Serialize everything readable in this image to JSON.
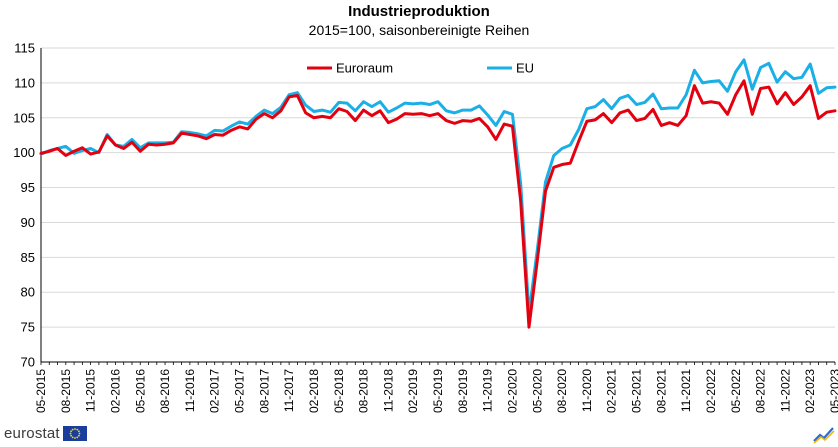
{
  "chart_data": {
    "type": "line",
    "title": "Industrieproduktion",
    "subtitle": "2015=100, saisonbereinigte Reihen",
    "xlabel": "",
    "ylabel": "",
    "ylim": [
      70,
      115
    ],
    "yticks": [
      70,
      75,
      80,
      85,
      90,
      95,
      100,
      105,
      110,
      115
    ],
    "xtick_labels": [
      "05-2015",
      "08-2015",
      "11-2015",
      "02-2016",
      "05-2016",
      "08-2016",
      "11-2016",
      "02-2017",
      "05-2017",
      "08-2017",
      "11-2017",
      "02-2018",
      "05-2018",
      "08-2018",
      "11-2018",
      "02-2019",
      "05-2019",
      "08-2019",
      "11-2019",
      "02-2020",
      "05-2020",
      "08-2020",
      "11-2020",
      "02-2021",
      "05-2021",
      "08-2021",
      "11-2021",
      "02-2022",
      "05-2022",
      "08-2022",
      "11-2022",
      "02-2023",
      "05-2023"
    ],
    "grid": "horizontal",
    "legend_position": "top-center",
    "x": [
      "05-2015",
      "06-2015",
      "07-2015",
      "08-2015",
      "09-2015",
      "10-2015",
      "11-2015",
      "12-2015",
      "01-2016",
      "02-2016",
      "03-2016",
      "04-2016",
      "05-2016",
      "06-2016",
      "07-2016",
      "08-2016",
      "09-2016",
      "10-2016",
      "11-2016",
      "12-2016",
      "01-2017",
      "02-2017",
      "03-2017",
      "04-2017",
      "05-2017",
      "06-2017",
      "07-2017",
      "08-2017",
      "09-2017",
      "10-2017",
      "11-2017",
      "12-2017",
      "01-2018",
      "02-2018",
      "03-2018",
      "04-2018",
      "05-2018",
      "06-2018",
      "07-2018",
      "08-2018",
      "09-2018",
      "10-2018",
      "11-2018",
      "12-2018",
      "01-2019",
      "02-2019",
      "03-2019",
      "04-2019",
      "05-2019",
      "06-2019",
      "07-2019",
      "08-2019",
      "09-2019",
      "10-2019",
      "11-2019",
      "12-2019",
      "01-2020",
      "02-2020",
      "03-2020",
      "04-2020",
      "05-2020",
      "06-2020",
      "07-2020",
      "08-2020",
      "09-2020",
      "10-2020",
      "11-2020",
      "12-2020",
      "01-2021",
      "02-2021",
      "03-2021",
      "04-2021",
      "05-2021",
      "06-2021",
      "07-2021",
      "08-2021",
      "09-2021",
      "10-2021",
      "11-2021",
      "12-2021",
      "01-2022",
      "02-2022",
      "03-2022",
      "04-2022",
      "05-2022",
      "06-2022",
      "07-2022",
      "08-2022",
      "09-2022",
      "10-2022",
      "11-2022",
      "12-2022",
      "01-2023",
      "02-2023",
      "03-2023",
      "04-2023",
      "05-2023"
    ],
    "series": [
      {
        "name": "Euroraum",
        "color": "#e3000f",
        "values": [
          99.9,
          100.2,
          100.6,
          99.6,
          100.2,
          100.7,
          99.8,
          100.1,
          102.4,
          101.1,
          100.6,
          101.5,
          100.2,
          101.2,
          101.1,
          101.2,
          101.4,
          102.8,
          102.6,
          102.4,
          102.0,
          102.6,
          102.5,
          103.2,
          103.7,
          103.4,
          104.8,
          105.6,
          105.0,
          106.0,
          108.0,
          108.2,
          105.7,
          105.0,
          105.2,
          105.0,
          106.3,
          105.9,
          104.6,
          106.1,
          105.3,
          106.0,
          104.3,
          104.8,
          105.6,
          105.5,
          105.6,
          105.3,
          105.6,
          104.6,
          104.2,
          104.6,
          104.5,
          104.9,
          103.7,
          101.9,
          104.1,
          103.8,
          93.0,
          75.0,
          84.5,
          94.5,
          97.9,
          98.3,
          98.5,
          101.6,
          104.5,
          104.7,
          105.6,
          104.3,
          105.7,
          106.1,
          104.6,
          104.9,
          106.2,
          103.9,
          104.3,
          103.9,
          105.3,
          109.6,
          107.1,
          107.3,
          107.1,
          105.5,
          108.3,
          110.3,
          105.5,
          109.2,
          109.4,
          107.0,
          108.6,
          106.9,
          108.0,
          109.6,
          104.9,
          105.8,
          106.0
        ]
      },
      {
        "name": "EU",
        "color": "#1ab0e6",
        "values": [
          99.8,
          100.3,
          100.6,
          100.9,
          99.9,
          100.3,
          100.6,
          100.0,
          102.6,
          101.1,
          100.9,
          101.9,
          100.7,
          101.4,
          101.4,
          101.4,
          101.5,
          103.0,
          102.9,
          102.7,
          102.4,
          103.2,
          103.1,
          103.8,
          104.4,
          104.1,
          105.2,
          106.1,
          105.6,
          106.5,
          108.3,
          108.6,
          106.8,
          105.9,
          106.1,
          105.8,
          107.2,
          107.1,
          106.0,
          107.3,
          106.6,
          107.3,
          105.8,
          106.4,
          107.1,
          107.0,
          107.1,
          106.9,
          107.3,
          106.0,
          105.7,
          106.1,
          106.1,
          106.7,
          105.4,
          103.9,
          105.9,
          105.5,
          95.5,
          77.0,
          86.0,
          95.8,
          99.6,
          100.6,
          101.1,
          103.3,
          106.3,
          106.6,
          107.6,
          106.3,
          107.8,
          108.2,
          106.9,
          107.2,
          108.4,
          106.3,
          106.4,
          106.4,
          108.3,
          111.8,
          110.0,
          110.2,
          110.3,
          108.8,
          111.6,
          113.3,
          109.1,
          112.2,
          112.8,
          110.1,
          111.6,
          110.6,
          110.8,
          112.7,
          108.5,
          109.3,
          109.4
        ]
      }
    ]
  },
  "branding": {
    "logo_text": "eurostat"
  }
}
